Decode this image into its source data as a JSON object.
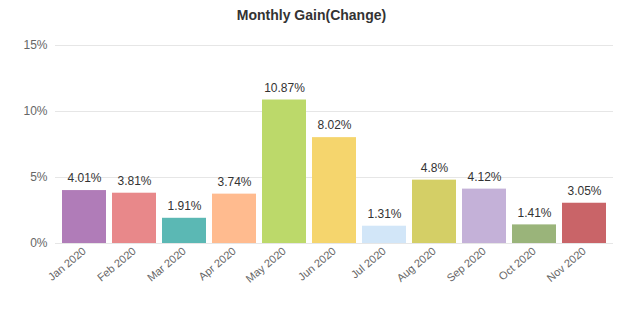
{
  "chart_data": {
    "type": "bar",
    "title": "Monthly Gain(Change)",
    "categories": [
      "Jan 2020",
      "Feb 2020",
      "Mar 2020",
      "Apr 2020",
      "May 2020",
      "Jun 2020",
      "Jul 2020",
      "Aug 2020",
      "Sep 2020",
      "Oct 2020",
      "Nov 2020"
    ],
    "values": [
      4.01,
      3.81,
      1.91,
      3.74,
      10.87,
      8.02,
      1.31,
      4.8,
      4.12,
      1.41,
      3.05
    ],
    "value_labels": [
      "4.01%",
      "3.81%",
      "1.91%",
      "3.74%",
      "10.87%",
      "8.02%",
      "1.31%",
      "4.8%",
      "4.12%",
      "1.41%",
      "3.05%"
    ],
    "colors": [
      "#b07cb8",
      "#e8888a",
      "#5bb8b4",
      "#ffbb8f",
      "#bcd96a",
      "#f5d56d",
      "#d2e6f8",
      "#d4cf66",
      "#c4b1d8",
      "#9ab47a",
      "#c96468"
    ],
    "ylim": [
      0,
      15
    ],
    "yticks": [
      {
        "value": 0,
        "label": "0%"
      },
      {
        "value": 5,
        "label": "5%"
      },
      {
        "value": 10,
        "label": "10%"
      },
      {
        "value": 15,
        "label": "15%"
      }
    ],
    "grid": true,
    "data_labels": true
  }
}
